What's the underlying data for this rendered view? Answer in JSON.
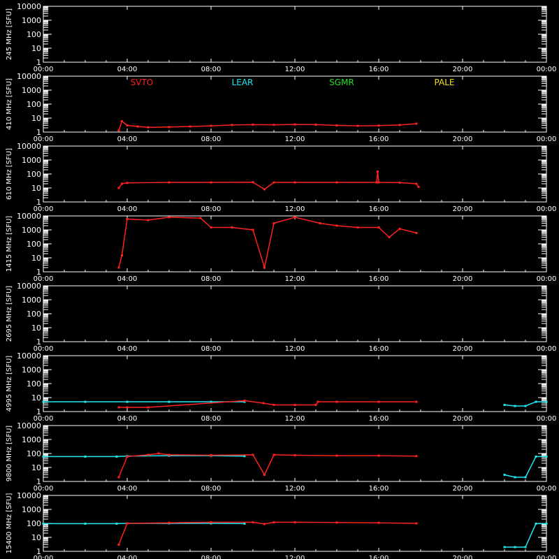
{
  "chart_data": {
    "type": "scatter",
    "xlim": [
      0,
      24
    ],
    "ylim": [
      1,
      10000
    ],
    "log_y": true,
    "x_tick_labels": [
      "00:00",
      "04:00",
      "08:00",
      "12:00",
      "16:00",
      "20:00",
      "00:00"
    ],
    "y_tick_labels": [
      "1",
      "10",
      "100",
      "1000",
      "10000"
    ],
    "ylabel_suffix": "[SFU]",
    "legend": [
      {
        "label": "SVTO",
        "color": "#ff2020"
      },
      {
        "label": "LEAR",
        "color": "#20e8f0"
      },
      {
        "label": "SGMR",
        "color": "#20e020"
      },
      {
        "label": "PALE",
        "color": "#f0e020"
      }
    ],
    "panels": [
      {
        "freq_label": "245 MHz",
        "series": []
      },
      {
        "freq_label": "410 MHz",
        "series": [
          {
            "station": "SVTO",
            "points": [
              [
                3.6,
                1.3
              ],
              [
                3.75,
                6
              ],
              [
                4.0,
                3
              ],
              [
                4.5,
                2.5
              ],
              [
                5,
                2.2
              ],
              [
                6,
                2.3
              ],
              [
                7,
                2.5
              ],
              [
                8,
                2.8
              ],
              [
                9,
                3.2
              ],
              [
                10,
                3.4
              ],
              [
                11,
                3.3
              ],
              [
                12,
                3.5
              ],
              [
                13,
                3.4
              ],
              [
                14,
                3
              ],
              [
                15,
                2.8
              ],
              [
                16,
                2.9
              ],
              [
                17,
                3.2
              ],
              [
                17.8,
                4
              ]
            ]
          }
        ]
      },
      {
        "freq_label": "610 MHz",
        "series": [
          {
            "station": "SVTO",
            "points": [
              [
                3.6,
                10
              ],
              [
                3.75,
                20
              ],
              [
                4.0,
                23
              ],
              [
                6,
                25
              ],
              [
                8,
                25
              ],
              [
                10,
                26
              ],
              [
                10.55,
                8
              ],
              [
                11,
                25
              ],
              [
                12,
                25
              ],
              [
                14,
                25
              ],
              [
                15.9,
                25
              ],
              [
                15.95,
                150
              ],
              [
                16,
                25
              ],
              [
                17,
                24
              ],
              [
                17.8,
                20
              ],
              [
                17.9,
                12
              ]
            ]
          }
        ]
      },
      {
        "freq_label": "1415 MHz",
        "series": [
          {
            "station": "SVTO",
            "points": [
              [
                3.6,
                2
              ],
              [
                3.75,
                15
              ],
              [
                4.0,
                6000
              ],
              [
                5,
                5000
              ],
              [
                6,
                8000
              ],
              [
                7.5,
                7000
              ],
              [
                8,
                1500
              ],
              [
                9,
                1500
              ],
              [
                10,
                1000
              ],
              [
                10.55,
                2
              ],
              [
                11,
                3000
              ],
              [
                12,
                8000
              ],
              [
                13.2,
                3000
              ],
              [
                14,
                2000
              ],
              [
                15,
                1500
              ],
              [
                16,
                1500
              ],
              [
                16.5,
                300
              ],
              [
                17,
                1200
              ],
              [
                17.8,
                600
              ]
            ]
          }
        ]
      },
      {
        "freq_label": "2695 MHz",
        "series": []
      },
      {
        "freq_label": "4995 MHz",
        "series": [
          {
            "station": "LEAR",
            "points": [
              [
                0,
                5
              ],
              [
                2,
                5
              ],
              [
                4,
                5
              ],
              [
                6,
                5
              ],
              [
                8,
                5
              ],
              [
                9.6,
                5
              ]
            ]
          },
          {
            "station": "SVTO",
            "points": [
              [
                3.6,
                2
              ],
              [
                4,
                2
              ],
              [
                5,
                2
              ],
              [
                9.6,
                6
              ],
              [
                10.5,
                4
              ],
              [
                11,
                3
              ],
              [
                12,
                3
              ],
              [
                13,
                3
              ],
              [
                13.1,
                5
              ],
              [
                14,
                5
              ],
              [
                16,
                5
              ],
              [
                17.8,
                5
              ]
            ]
          },
          {
            "station": "LEAR",
            "points": [
              [
                22.0,
                3
              ],
              [
                22.5,
                2.5
              ],
              [
                23.0,
                2.5
              ],
              [
                23.5,
                5
              ],
              [
                24,
                5
              ]
            ]
          }
        ]
      },
      {
        "freq_label": "9800 MHz",
        "series": [
          {
            "station": "LEAR",
            "points": [
              [
                0,
                60
              ],
              [
                2,
                60
              ],
              [
                3.5,
                60
              ],
              [
                4,
                65
              ],
              [
                6,
                70
              ],
              [
                8,
                70
              ],
              [
                9.6,
                65
              ]
            ]
          },
          {
            "station": "SVTO",
            "points": [
              [
                3.6,
                2
              ],
              [
                4,
                60
              ],
              [
                5,
                80
              ],
              [
                5.5,
                100
              ],
              [
                6,
                80
              ],
              [
                8,
                75
              ],
              [
                10,
                80
              ],
              [
                10.55,
                3
              ],
              [
                11,
                80
              ],
              [
                12,
                75
              ],
              [
                14,
                70
              ],
              [
                16,
                70
              ],
              [
                17.8,
                65
              ]
            ]
          },
          {
            "station": "LEAR",
            "points": [
              [
                22.0,
                3
              ],
              [
                22.5,
                2
              ],
              [
                23.0,
                2
              ],
              [
                23.5,
                60
              ],
              [
                24,
                60
              ]
            ]
          }
        ]
      },
      {
        "freq_label": "15400 MHz",
        "series": [
          {
            "station": "LEAR",
            "points": [
              [
                0,
                95
              ],
              [
                2,
                95
              ],
              [
                3.5,
                95
              ],
              [
                4,
                100
              ],
              [
                6,
                100
              ],
              [
                8,
                100
              ],
              [
                9.6,
                95
              ]
            ]
          },
          {
            "station": "SVTO",
            "points": [
              [
                3.6,
                3
              ],
              [
                4,
                100
              ],
              [
                6,
                110
              ],
              [
                8,
                120
              ],
              [
                10,
                120
              ],
              [
                10.55,
                90
              ],
              [
                11,
                120
              ],
              [
                12,
                120
              ],
              [
                14,
                115
              ],
              [
                16,
                110
              ],
              [
                17.8,
                100
              ]
            ]
          },
          {
            "station": "LEAR",
            "points": [
              [
                22.0,
                2
              ],
              [
                22.5,
                2
              ],
              [
                23.0,
                2
              ],
              [
                23.5,
                95
              ],
              [
                24,
                95
              ]
            ]
          }
        ]
      }
    ]
  }
}
